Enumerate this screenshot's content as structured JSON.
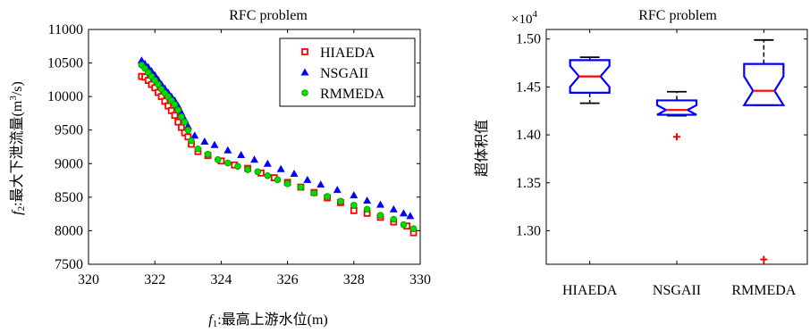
{
  "colors": {
    "hiaeda": "#ff0000",
    "nsgaii": "#0000ff",
    "rmmeda": "#00dd00",
    "box": "#0000ff",
    "median": "#ff0000",
    "whisker": "#000000",
    "outlier": "#ff0000",
    "axis": "#000000"
  },
  "chart_data": [
    {
      "type": "scatter",
      "title": "RFC problem",
      "xlabel": "f1:最高上游水位(m)",
      "xlabel_parts": {
        "var": "f",
        "sub": "1",
        "rest": ":最高上游水位(m)"
      },
      "ylabel": "f2:最大下泄流量(m3/s)",
      "ylabel_parts": {
        "var": "f",
        "sub": "2",
        "rest": ":最大下泄流量(m",
        "sup": "3",
        "end": "/s)"
      },
      "xlim": [
        320,
        330
      ],
      "ylim": [
        7500,
        11000
      ],
      "xticks": [
        320,
        322,
        324,
        326,
        328,
        330
      ],
      "yticks": [
        7500,
        8000,
        8500,
        9000,
        9500,
        10000,
        10500,
        11000
      ],
      "legend_position": "top-right",
      "series": [
        {
          "name": "HIAEDA",
          "marker": "square",
          "color": "#ff0000",
          "points": [
            [
              321.6,
              10300
            ],
            [
              321.7,
              10290
            ],
            [
              321.8,
              10240
            ],
            [
              321.9,
              10180
            ],
            [
              322.0,
              10130
            ],
            [
              322.1,
              10060
            ],
            [
              322.2,
              10000
            ],
            [
              322.3,
              9930
            ],
            [
              322.4,
              9860
            ],
            [
              322.5,
              9790
            ],
            [
              322.6,
              9720
            ],
            [
              322.7,
              9620
            ],
            [
              322.8,
              9540
            ],
            [
              322.9,
              9460
            ],
            [
              323.0,
              9400
            ],
            [
              323.1,
              9290
            ],
            [
              323.3,
              9180
            ],
            [
              323.6,
              9120
            ],
            [
              324.0,
              9040
            ],
            [
              324.4,
              8980
            ],
            [
              324.8,
              8930
            ],
            [
              325.2,
              8860
            ],
            [
              325.6,
              8790
            ],
            [
              326.0,
              8720
            ],
            [
              326.4,
              8650
            ],
            [
              326.8,
              8570
            ],
            [
              327.2,
              8490
            ],
            [
              327.6,
              8420
            ],
            [
              328.0,
              8300
            ],
            [
              328.4,
              8260
            ],
            [
              328.8,
              8200
            ],
            [
              329.2,
              8130
            ],
            [
              329.6,
              8070
            ],
            [
              329.8,
              7970
            ]
          ]
        },
        {
          "name": "NSGAII",
          "marker": "triangle",
          "color": "#0000ff",
          "points": [
            [
              321.6,
              10540
            ],
            [
              321.7,
              10490
            ],
            [
              321.8,
              10440
            ],
            [
              321.9,
              10380
            ],
            [
              322.0,
              10320
            ],
            [
              322.1,
              10250
            ],
            [
              322.2,
              10180
            ],
            [
              322.3,
              10120
            ],
            [
              322.4,
              10060
            ],
            [
              322.5,
              10000
            ],
            [
              322.6,
              9940
            ],
            [
              322.7,
              9860
            ],
            [
              322.8,
              9760
            ],
            [
              322.9,
              9660
            ],
            [
              323.0,
              9560
            ],
            [
              323.2,
              9420
            ],
            [
              323.5,
              9330
            ],
            [
              323.8,
              9280
            ],
            [
              324.2,
              9200
            ],
            [
              324.6,
              9130
            ],
            [
              325.0,
              9060
            ],
            [
              325.4,
              9000
            ],
            [
              325.8,
              8920
            ],
            [
              326.2,
              8850
            ],
            [
              326.6,
              8760
            ],
            [
              327.0,
              8690
            ],
            [
              327.5,
              8610
            ],
            [
              328.0,
              8530
            ],
            [
              328.4,
              8450
            ],
            [
              328.8,
              8390
            ],
            [
              329.2,
              8320
            ],
            [
              329.5,
              8260
            ],
            [
              329.7,
              8220
            ]
          ]
        },
        {
          "name": "RMMEDA",
          "marker": "circle",
          "color": "#00dd00",
          "points": [
            [
              321.6,
              10470
            ],
            [
              321.7,
              10420
            ],
            [
              321.8,
              10360
            ],
            [
              321.9,
              10300
            ],
            [
              322.0,
              10240
            ],
            [
              322.1,
              10180
            ],
            [
              322.2,
              10110
            ],
            [
              322.3,
              10050
            ],
            [
              322.4,
              10000
            ],
            [
              322.5,
              9940
            ],
            [
              322.6,
              9880
            ],
            [
              322.7,
              9800
            ],
            [
              322.8,
              9700
            ],
            [
              322.9,
              9620
            ],
            [
              323.0,
              9500
            ],
            [
              323.1,
              9340
            ],
            [
              323.3,
              9220
            ],
            [
              323.6,
              9140
            ],
            [
              323.9,
              9060
            ],
            [
              324.2,
              9010
            ],
            [
              324.5,
              8960
            ],
            [
              324.8,
              8910
            ],
            [
              325.1,
              8880
            ],
            [
              325.4,
              8820
            ],
            [
              325.7,
              8760
            ],
            [
              326.0,
              8700
            ],
            [
              326.4,
              8650
            ],
            [
              326.8,
              8560
            ],
            [
              327.2,
              8510
            ],
            [
              327.6,
              8440
            ],
            [
              328.0,
              8380
            ],
            [
              328.4,
              8320
            ],
            [
              328.8,
              8230
            ],
            [
              329.2,
              8170
            ],
            [
              329.5,
              8090
            ],
            [
              329.8,
              8030
            ]
          ]
        }
      ]
    },
    {
      "type": "box",
      "title": "RFC problem",
      "ylabel": "超体积值",
      "exponent_label": {
        "base": "×10",
        "exp": "4"
      },
      "ylim": [
        1.265,
        1.51
      ],
      "yticks": [
        1.3,
        1.35,
        1.4,
        1.45,
        1.5
      ],
      "ytick_labels": [
        "1.30",
        "1.35",
        "1.40",
        "1.45",
        "1.50"
      ],
      "categories": [
        "HIAEDA",
        "NSGAII",
        "RMMEDA"
      ],
      "boxes": [
        {
          "name": "HIAEDA",
          "whisker_low": 1.433,
          "q1": 1.444,
          "median": 1.461,
          "q3": 1.478,
          "whisker_high": 1.481,
          "notch_low": 1.45,
          "notch_high": 1.472,
          "outliers": []
        },
        {
          "name": "NSGAII",
          "whisker_low": 1.42,
          "q1": 1.421,
          "median": 1.426,
          "q3": 1.436,
          "whisker_high": 1.445,
          "notch_low": 1.421,
          "notch_high": 1.431,
          "outliers": [
            1.398
          ]
        },
        {
          "name": "RMMEDA",
          "whisker_low": 1.431,
          "q1": 1.431,
          "median": 1.446,
          "q3": 1.474,
          "whisker_high": 1.499,
          "notch_low": 1.431,
          "notch_high": 1.461,
          "outliers": [
            1.27
          ]
        }
      ]
    }
  ]
}
